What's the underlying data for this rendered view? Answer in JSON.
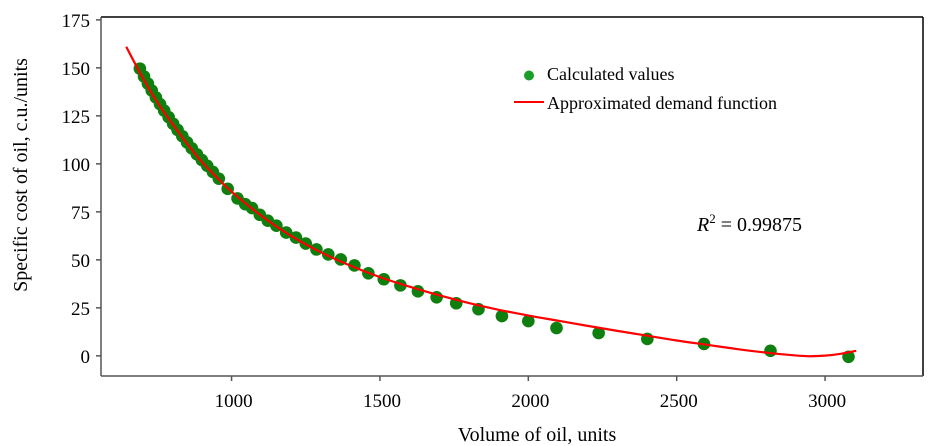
{
  "chart_data": {
    "type": "scatter",
    "title": "",
    "xlabel": "Volume of oil, units",
    "ylabel": "Specific cost of oil, c.u./units",
    "xlim": [
      560,
      3330
    ],
    "ylim": [
      -10.5,
      176.5
    ],
    "xticks": [
      1000,
      1500,
      2000,
      2500,
      3000
    ],
    "yticks": [
      0,
      25,
      50,
      75,
      100,
      125,
      150,
      175
    ],
    "xtick_labels": [
      "1000",
      "1500",
      "2000",
      "2500",
      "3000"
    ],
    "ytick_labels": [
      "0",
      "25",
      "50",
      "75",
      "100",
      "125",
      "150",
      "175"
    ],
    "grid": false,
    "legend": {
      "position": "top-right",
      "entries": [
        {
          "label": "Calculated values",
          "kind": "marker",
          "color": "#1a9e2a"
        },
        {
          "label": "Approximated demand function",
          "kind": "line",
          "color": "#ff0000"
        }
      ]
    },
    "annotation": {
      "base": "R",
      "sup": "2",
      "rest": " = 0.99875"
    },
    "series": [
      {
        "name": "Calculated values",
        "kind": "scatter",
        "color": "#0f7f0f",
        "points": [
          [
            691,
            149.6
          ],
          [
            705,
            145.5
          ],
          [
            718,
            141.8
          ],
          [
            731,
            138.2
          ],
          [
            745,
            134.6
          ],
          [
            759,
            131.1
          ],
          [
            773,
            127.7
          ],
          [
            788,
            124.3
          ],
          [
            803,
            120.9
          ],
          [
            818,
            117.7
          ],
          [
            834,
            114.4
          ],
          [
            850,
            111.2
          ],
          [
            866,
            108.1
          ],
          [
            883,
            105.0
          ],
          [
            900,
            102.0
          ],
          [
            918,
            99.0
          ],
          [
            937,
            95.8
          ],
          [
            957,
            92.3
          ],
          [
            987,
            87.0
          ],
          [
            1020,
            82.0
          ],
          [
            1046,
            79.0
          ],
          [
            1069,
            77.0
          ],
          [
            1095,
            73.5
          ],
          [
            1122,
            70.4
          ],
          [
            1151,
            67.8
          ],
          [
            1184,
            64.2
          ],
          [
            1217,
            61.6
          ],
          [
            1250,
            58.5
          ],
          [
            1286,
            55.4
          ],
          [
            1326,
            52.8
          ],
          [
            1368,
            50.2
          ],
          [
            1414,
            47.1
          ],
          [
            1461,
            43.0
          ],
          [
            1513,
            39.9
          ],
          [
            1569,
            36.7
          ],
          [
            1628,
            33.6
          ],
          [
            1691,
            30.5
          ],
          [
            1757,
            27.4
          ],
          [
            1832,
            24.3
          ],
          [
            1911,
            20.7
          ],
          [
            2000,
            18.1
          ],
          [
            2095,
            14.5
          ],
          [
            2237,
            11.9
          ],
          [
            2401,
            8.8
          ],
          [
            2592,
            6.2
          ],
          [
            2816,
            2.6
          ],
          [
            3079,
            -0.5
          ]
        ]
      },
      {
        "name": "Approximated demand function",
        "kind": "line",
        "color": "#ff0000",
        "points": [
          [
            645,
            161
          ],
          [
            700,
            145
          ],
          [
            750,
            132
          ],
          [
            800,
            121
          ],
          [
            850,
            110.5
          ],
          [
            900,
            101
          ],
          [
            950,
            93
          ],
          [
            1000,
            85.5
          ],
          [
            1100,
            73
          ],
          [
            1200,
            62.5
          ],
          [
            1300,
            54
          ],
          [
            1400,
            47
          ],
          [
            1500,
            41
          ],
          [
            1600,
            36
          ],
          [
            1700,
            31.5
          ],
          [
            1800,
            27.5
          ],
          [
            1900,
            24
          ],
          [
            2000,
            21
          ],
          [
            2100,
            18.3
          ],
          [
            2200,
            15.6
          ],
          [
            2300,
            13
          ],
          [
            2400,
            10.5
          ],
          [
            2500,
            8
          ],
          [
            2600,
            5.8
          ],
          [
            2700,
            3.6
          ],
          [
            2800,
            1.7
          ],
          [
            2900,
            0.2
          ],
          [
            2950,
            -0.2
          ],
          [
            3000,
            0.1
          ],
          [
            3050,
            1.0
          ],
          [
            3105,
            2.6
          ]
        ]
      }
    ]
  }
}
